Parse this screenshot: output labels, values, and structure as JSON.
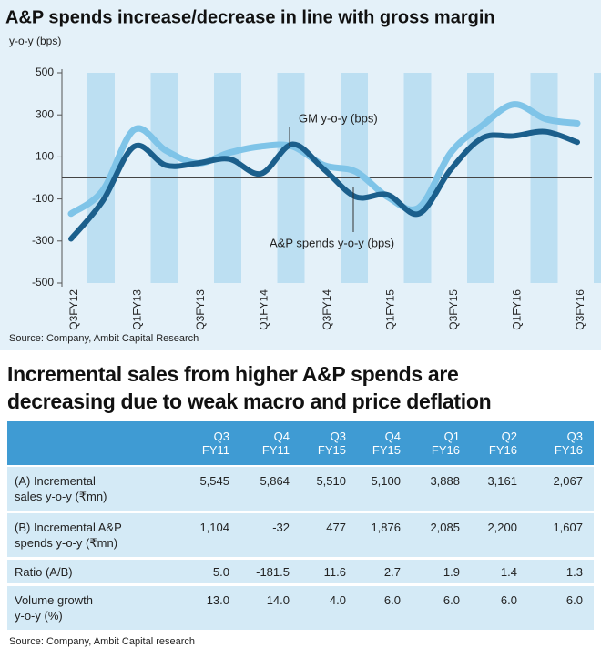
{
  "chart_data": {
    "type": "line",
    "title": "A&P spends increase/decrease in line with gross margin",
    "subtitle": "y-o-y (bps)",
    "categories": [
      "Q3FY12",
      null,
      "Q1FY13",
      null,
      "Q3FY13",
      null,
      "Q1FY14",
      null,
      "Q3FY14",
      null,
      "Q1FY15",
      null,
      "Q3FY15",
      null,
      "Q1FY16",
      null,
      "Q3FY16"
    ],
    "series": [
      {
        "name": "GM y-o-y (bps)",
        "color": "#7fc4e8",
        "values": [
          -170,
          -60,
          230,
          130,
          70,
          120,
          150,
          150,
          60,
          30,
          -90,
          -140,
          120,
          250,
          350,
          280,
          260
        ]
      },
      {
        "name": "A&P spends y-o-y (bps)",
        "color": "#1b5f8c",
        "values": [
          -290,
          -110,
          150,
          60,
          70,
          90,
          20,
          160,
          40,
          -90,
          -80,
          -170,
          40,
          190,
          200,
          220,
          170
        ]
      }
    ],
    "ylim": [
      -500,
      500
    ],
    "yticks": [
      500,
      300,
      100,
      -100,
      -300,
      -500
    ],
    "source": "Source: Company, Ambit Capital Research"
  },
  "table": {
    "title": [
      "Incremental sales from higher A&P spends are",
      "decreasing due to weak macro and price deflation"
    ],
    "columns": [
      [
        "Q3",
        "FY11"
      ],
      [
        "Q4",
        "FY11"
      ],
      [
        "Q3",
        "FY15"
      ],
      [
        "Q4",
        "FY15"
      ],
      [
        "Q1",
        "FY16"
      ],
      [
        "Q2",
        "FY16"
      ],
      [
        "Q3",
        "FY16"
      ]
    ],
    "rows": [
      {
        "label": [
          "(A) Incremental",
          "sales y-o-y (₹mn)"
        ],
        "cells": [
          "5,545",
          "5,864",
          "5,510",
          "5,100",
          "3,888",
          "3,161",
          "2,067"
        ]
      },
      {
        "label": [
          "(B) Incremental A&P",
          "spends y-o-y (₹mn)"
        ],
        "cells": [
          "1,104",
          "-32",
          "477",
          "1,876",
          "2,085",
          "2,200",
          "1,607"
        ]
      },
      {
        "label": [
          "Ratio (A/B)"
        ],
        "cells": [
          "5.0",
          "-181.5",
          "11.6",
          "2.7",
          "1.9",
          "1.4",
          "1.3"
        ]
      },
      {
        "label": [
          "Volume growth",
          "y-o-y (%)"
        ],
        "cells": [
          "13.0",
          "14.0",
          "4.0",
          "6.0",
          "6.0",
          "6.0",
          "6.0"
        ]
      }
    ],
    "source": "Source: Company, Ambit Capital research"
  }
}
